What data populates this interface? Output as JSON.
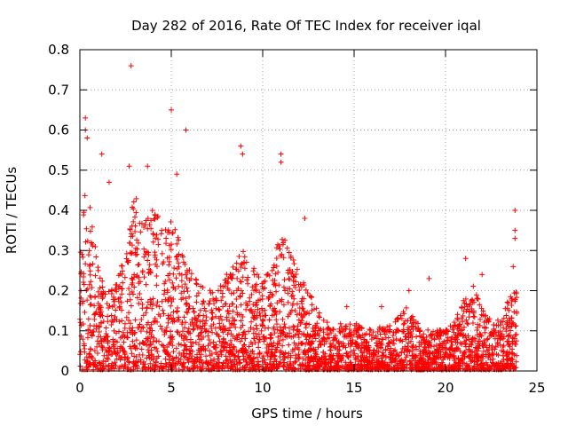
{
  "chart_data": {
    "type": "scatter",
    "title": "Day 282 of 2016, Rate Of TEC Index for receiver iqal",
    "xlabel": "GPS time / hours",
    "ylabel": "ROTI / TECUs",
    "xlim": [
      0,
      25
    ],
    "ylim": [
      0,
      0.8
    ],
    "xticks": [
      "0",
      "5",
      "10",
      "15",
      "20",
      "25"
    ],
    "yticks": [
      "0",
      "0.1",
      "0.2",
      "0.3",
      "0.4",
      "0.5",
      "0.6",
      "0.7",
      "0.8"
    ],
    "grid": true,
    "legend": "none",
    "marker": "+",
    "color": "#ff0000",
    "envelope": {
      "x": [
        0.0,
        0.3,
        0.6,
        1.0,
        1.5,
        2.0,
        2.5,
        3.0,
        3.5,
        4.0,
        4.5,
        5.0,
        5.5,
        6.0,
        6.5,
        7.0,
        7.5,
        8.0,
        8.5,
        9.0,
        9.5,
        10.0,
        10.5,
        11.0,
        11.5,
        12.0,
        12.5,
        13.0,
        13.5,
        14.0,
        14.5,
        15.0,
        15.5,
        16.0,
        16.5,
        17.0,
        17.5,
        18.0,
        18.5,
        19.0,
        19.5,
        20.0,
        20.5,
        21.0,
        21.5,
        22.0,
        22.5,
        23.0,
        23.5,
        23.9
      ],
      "upper": [
        0.28,
        0.5,
        0.4,
        0.26,
        0.2,
        0.22,
        0.3,
        0.45,
        0.38,
        0.42,
        0.35,
        0.38,
        0.32,
        0.25,
        0.22,
        0.2,
        0.19,
        0.24,
        0.27,
        0.3,
        0.26,
        0.22,
        0.27,
        0.35,
        0.3,
        0.24,
        0.2,
        0.15,
        0.12,
        0.11,
        0.12,
        0.13,
        0.11,
        0.1,
        0.11,
        0.12,
        0.14,
        0.16,
        0.12,
        0.1,
        0.1,
        0.1,
        0.12,
        0.18,
        0.22,
        0.15,
        0.13,
        0.13,
        0.18,
        0.2
      ]
    },
    "outliers": [
      {
        "x": 2.8,
        "y": 0.76
      },
      {
        "x": 5.0,
        "y": 0.65
      },
      {
        "x": 5.8,
        "y": 0.6
      },
      {
        "x": 0.3,
        "y": 0.63
      },
      {
        "x": 0.3,
        "y": 0.6
      },
      {
        "x": 0.4,
        "y": 0.58
      },
      {
        "x": 8.8,
        "y": 0.56
      },
      {
        "x": 8.9,
        "y": 0.54
      },
      {
        "x": 11.0,
        "y": 0.54
      },
      {
        "x": 11.0,
        "y": 0.52
      },
      {
        "x": 1.2,
        "y": 0.54
      },
      {
        "x": 2.7,
        "y": 0.51
      },
      {
        "x": 3.7,
        "y": 0.51
      },
      {
        "x": 5.3,
        "y": 0.49
      },
      {
        "x": 1.6,
        "y": 0.47
      },
      {
        "x": 23.8,
        "y": 0.4
      },
      {
        "x": 23.8,
        "y": 0.35
      },
      {
        "x": 23.8,
        "y": 0.33
      },
      {
        "x": 12.3,
        "y": 0.38
      },
      {
        "x": 22.0,
        "y": 0.24
      },
      {
        "x": 21.1,
        "y": 0.28
      },
      {
        "x": 19.1,
        "y": 0.23
      },
      {
        "x": 23.7,
        "y": 0.26
      },
      {
        "x": 16.5,
        "y": 0.16
      },
      {
        "x": 18.0,
        "y": 0.2
      },
      {
        "x": 14.6,
        "y": 0.16
      }
    ]
  }
}
